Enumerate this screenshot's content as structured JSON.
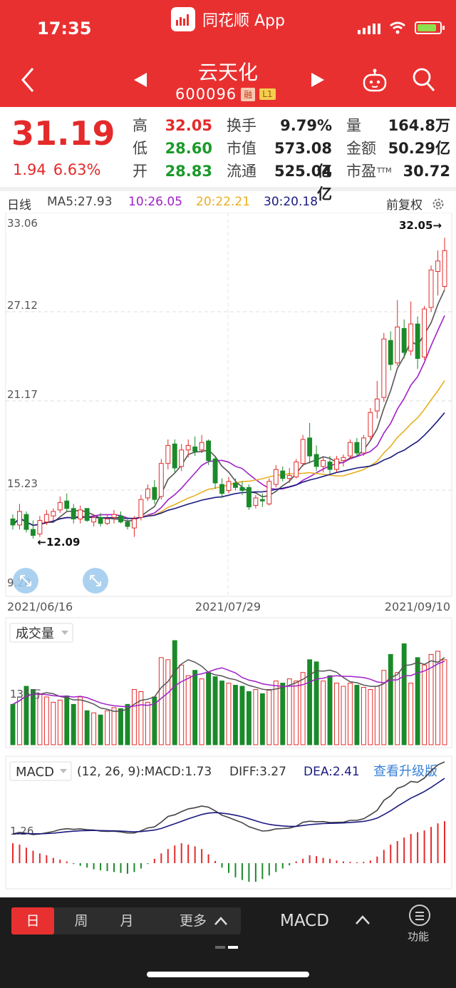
{
  "status_bar": {
    "time": "17:35",
    "app_name": "同花顺 App"
  },
  "stock": {
    "name": "云天化",
    "code": "600096",
    "tags": [
      "融",
      "L1"
    ]
  },
  "quote": {
    "price": "31.19",
    "change": "1.94",
    "change_pct": "6.63%",
    "fields": [
      {
        "label": "高",
        "value": "32.05",
        "tone": "up"
      },
      {
        "label": "低",
        "value": "28.60",
        "tone": "down"
      },
      {
        "label": "开",
        "value": "28.83",
        "tone": "down"
      },
      {
        "label": "换手",
        "value": "9.79%",
        "tone": "neutral"
      },
      {
        "label": "市值",
        "value": "573.08亿",
        "tone": "neutral"
      },
      {
        "label": "流通",
        "value": "525.04亿",
        "tone": "neutral"
      },
      {
        "label": "量",
        "value": "164.8万",
        "tone": "neutral"
      },
      {
        "label": "金额",
        "value": "50.29亿",
        "tone": "neutral"
      },
      {
        "label": "市盈",
        "value": "30.72",
        "tone": "neutral",
        "sup": "TTM"
      }
    ]
  },
  "kline": {
    "period_label": "日线",
    "ma5": "MA5:27.93",
    "ma10": "10:26.05",
    "ma20": "20:22.21",
    "ma30": "30:20.18",
    "adjust_label": "前复权",
    "colors": {
      "up": "#e42a2a",
      "down": "#1b8a2a",
      "ma5": "#555555",
      "ma10": "#a020c8",
      "ma20": "#e8b020",
      "ma30": "#1a1a80"
    }
  },
  "chart_data": [
    {
      "type": "candlestick",
      "y_ticks": [
        "33.06",
        "27.12",
        "21.17",
        "15.23",
        "9.28"
      ],
      "ylim": [
        9.28,
        33.06
      ],
      "x_labels": [
        "2021/06/16",
        "2021/07/29",
        "2021/09/10"
      ],
      "annotations": {
        "max": "32.05",
        "min": "12.09"
      },
      "candles_ohlc": [
        [
          13.3,
          13.6,
          12.6,
          12.9
        ],
        [
          12.9,
          14.3,
          12.6,
          13.8
        ],
        [
          13.6,
          13.8,
          12.4,
          12.6
        ],
        [
          12.6,
          13.2,
          12.0,
          12.2
        ],
        [
          12.3,
          13.5,
          12.1,
          13.2
        ],
        [
          13.1,
          13.9,
          12.9,
          13.6
        ],
        [
          13.5,
          14.0,
          13.2,
          13.8
        ],
        [
          13.9,
          14.8,
          13.7,
          14.4
        ],
        [
          14.5,
          15.0,
          13.8,
          14.0
        ],
        [
          14.0,
          14.3,
          13.0,
          13.3
        ],
        [
          13.3,
          14.2,
          13.0,
          13.9
        ],
        [
          14.0,
          14.0,
          13.1,
          13.2
        ],
        [
          13.1,
          13.6,
          12.8,
          13.4
        ],
        [
          13.4,
          13.7,
          12.8,
          13.0
        ],
        [
          13.0,
          13.6,
          12.9,
          13.3
        ],
        [
          13.4,
          13.9,
          13.0,
          13.6
        ],
        [
          13.5,
          13.8,
          13.0,
          13.1
        ],
        [
          13.1,
          13.4,
          12.6,
          12.8
        ],
        [
          12.7,
          13.5,
          12.1,
          13.3
        ],
        [
          13.4,
          14.9,
          13.2,
          14.6
        ],
        [
          14.7,
          15.6,
          14.5,
          15.3
        ],
        [
          15.4,
          15.9,
          14.3,
          14.6
        ],
        [
          14.8,
          17.3,
          14.6,
          17.0
        ],
        [
          17.0,
          18.6,
          16.6,
          18.2
        ],
        [
          18.3,
          18.6,
          16.4,
          16.7
        ],
        [
          16.8,
          18.3,
          16.5,
          17.9
        ],
        [
          17.9,
          18.6,
          17.4,
          18.2
        ],
        [
          18.1,
          18.8,
          17.5,
          17.8
        ],
        [
          17.9,
          18.9,
          17.7,
          18.4
        ],
        [
          18.5,
          18.6,
          16.9,
          17.2
        ],
        [
          17.3,
          17.5,
          15.3,
          15.7
        ],
        [
          15.6,
          16.0,
          14.7,
          15.0
        ],
        [
          15.2,
          16.1,
          15.0,
          15.8
        ],
        [
          15.7,
          16.0,
          15.2,
          15.4
        ],
        [
          15.4,
          15.8,
          14.9,
          15.2
        ],
        [
          15.4,
          15.6,
          13.9,
          14.1
        ],
        [
          14.2,
          14.9,
          14.0,
          14.7
        ],
        [
          14.6,
          15.0,
          14.1,
          14.5
        ],
        [
          14.3,
          16.0,
          14.2,
          15.8
        ],
        [
          15.6,
          16.9,
          15.4,
          16.6
        ],
        [
          16.5,
          16.8,
          15.8,
          16.0
        ],
        [
          16.0,
          16.7,
          15.7,
          16.2
        ],
        [
          16.1,
          17.3,
          16.0,
          17.1
        ],
        [
          17.0,
          18.9,
          16.8,
          18.6
        ],
        [
          18.7,
          19.7,
          17.0,
          17.5
        ],
        [
          17.6,
          18.2,
          16.5,
          16.8
        ],
        [
          16.8,
          17.4,
          16.4,
          17.2
        ],
        [
          17.1,
          17.5,
          16.3,
          16.6
        ],
        [
          16.6,
          17.5,
          16.4,
          17.3
        ],
        [
          17.2,
          17.6,
          16.8,
          17.4
        ],
        [
          17.5,
          18.6,
          17.3,
          18.4
        ],
        [
          18.4,
          18.7,
          17.5,
          17.7
        ],
        [
          17.7,
          18.9,
          17.5,
          18.7
        ],
        [
          18.8,
          20.7,
          18.6,
          20.4
        ],
        [
          20.5,
          22.5,
          20.0,
          21.3
        ],
        [
          21.4,
          25.7,
          21.1,
          25.3
        ],
        [
          25.2,
          25.8,
          23.2,
          23.6
        ],
        [
          23.7,
          27.9,
          23.5,
          26.1
        ],
        [
          26.0,
          26.6,
          24.0,
          24.4
        ],
        [
          24.5,
          27.8,
          24.2,
          26.3
        ],
        [
          26.3,
          26.8,
          23.3,
          24.0
        ],
        [
          24.1,
          27.5,
          23.9,
          27.3
        ],
        [
          27.4,
          30.2,
          27.1,
          29.9
        ],
        [
          29.8,
          31.2,
          28.2,
          30.5
        ],
        [
          28.8,
          32.05,
          28.6,
          31.19
        ]
      ]
    },
    {
      "type": "bar",
      "title": "成交量",
      "y_tick": "135万",
      "volumes": [
        38,
        45,
        55,
        52,
        48,
        45,
        40,
        42,
        46,
        38,
        45,
        32,
        30,
        28,
        32,
        35,
        34,
        38,
        52,
        50,
        40,
        45,
        82,
        80,
        98,
        75,
        65,
        70,
        62,
        68,
        64,
        60,
        58,
        56,
        55,
        50,
        52,
        48,
        52,
        60,
        58,
        62,
        60,
        68,
        80,
        78,
        60,
        65,
        58,
        55,
        58,
        56,
        54,
        52,
        55,
        70,
        85,
        68,
        95,
        58,
        82,
        75,
        85,
        88,
        80
      ]
    },
    {
      "type": "bar",
      "title": "MACD",
      "params": "(12, 26, 9):MACD:1.73",
      "diff": "DIFF:3.27",
      "dea": "DEA:2.41",
      "y_tick": "1.26",
      "upgrade_link": "查看升级版",
      "hist": [
        0.45,
        0.42,
        0.35,
        0.28,
        0.22,
        0.18,
        0.12,
        0.08,
        0.04,
        -0.02,
        -0.06,
        -0.1,
        -0.14,
        -0.16,
        -0.18,
        -0.2,
        -0.22,
        -0.24,
        -0.2,
        -0.12,
        -0.02,
        0.1,
        0.22,
        0.32,
        0.4,
        0.45,
        0.42,
        0.38,
        0.32,
        0.2,
        0.05,
        -0.1,
        -0.22,
        -0.32,
        -0.38,
        -0.42,
        -0.42,
        -0.36,
        -0.28,
        -0.2,
        -0.12,
        -0.05,
        0.04,
        0.1,
        0.18,
        0.16,
        0.12,
        0.1,
        0.06,
        0.04,
        0.03,
        0.02,
        0.03,
        0.06,
        0.15,
        0.3,
        0.42,
        0.5,
        0.58,
        0.66,
        0.7,
        0.74,
        0.82,
        0.9,
        0.95
      ]
    }
  ],
  "bottom_bar": {
    "tabs": [
      "日",
      "周",
      "月",
      "更多"
    ],
    "indicator": "MACD",
    "function_label": "功能"
  }
}
